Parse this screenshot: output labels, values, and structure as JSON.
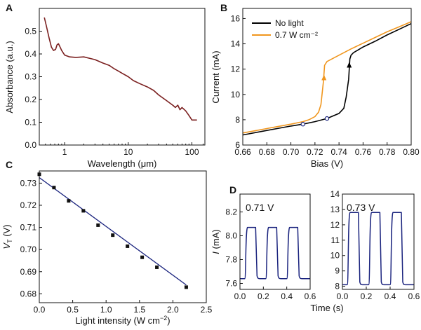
{
  "chart_data": [
    {
      "panel": "A",
      "type": "line",
      "xlabel_main": "Wavelength (",
      "xlabel_unit": "μm",
      "xlabel_close": ")",
      "ylabel": "Absorbance (a.u.)",
      "xscale": "log",
      "xlim": [
        0.4,
        160
      ],
      "ylim": [
        0.0,
        0.6
      ],
      "xticks": [
        1,
        10,
        100
      ],
      "xtick_labels": [
        "1",
        "10",
        "100"
      ],
      "yticks": [
        0.0,
        0.1,
        0.2,
        0.3,
        0.4,
        0.5
      ],
      "ytick_labels": [
        "0.0",
        "0.1",
        "0.2",
        "0.3",
        "0.4",
        "0.5"
      ],
      "color": "#7a1f1f",
      "grid": false,
      "series": [
        {
          "x": [
            0.48,
            0.52,
            0.57,
            0.62,
            0.67,
            0.72,
            0.76,
            0.8,
            0.85,
            0.9,
            1.0,
            1.2,
            1.5,
            2.0,
            3.0,
            4.0,
            5.0,
            6.0,
            7.0,
            8.0,
            10,
            12,
            15,
            20,
            25,
            30,
            40,
            50,
            55,
            60,
            65,
            70,
            80,
            90,
            100,
            110,
            120
          ],
          "y": [
            0.56,
            0.52,
            0.47,
            0.43,
            0.415,
            0.42,
            0.44,
            0.445,
            0.43,
            0.415,
            0.395,
            0.387,
            0.385,
            0.387,
            0.375,
            0.36,
            0.35,
            0.335,
            0.325,
            0.315,
            0.3,
            0.283,
            0.27,
            0.255,
            0.24,
            0.22,
            0.195,
            0.175,
            0.165,
            0.175,
            0.155,
            0.165,
            0.15,
            0.13,
            0.11,
            0.11,
            0.11
          ]
        }
      ]
    },
    {
      "panel": "B",
      "type": "line",
      "xlabel": "Bias (V)",
      "ylabel": "Current (mA)",
      "xlim": [
        0.66,
        0.8
      ],
      "ylim": [
        6,
        16.8
      ],
      "xticks": [
        0.66,
        0.68,
        0.7,
        0.72,
        0.74,
        0.76,
        0.78,
        0.8
      ],
      "xtick_labels": [
        "0.66",
        "0.68",
        "0.70",
        "0.72",
        "0.74",
        "0.76",
        "0.78",
        "0.80"
      ],
      "yticks": [
        6,
        8,
        10,
        12,
        14,
        16
      ],
      "ytick_labels": [
        "6",
        "8",
        "10",
        "12",
        "14",
        "16"
      ],
      "legend_position": "top-left",
      "grid": false,
      "series": [
        {
          "name": "No light",
          "color": "#000000",
          "x": [
            0.66,
            0.68,
            0.7,
            0.71,
            0.72,
            0.73,
            0.74,
            0.744,
            0.746,
            0.748,
            0.749,
            0.75,
            0.752,
            0.76,
            0.77,
            0.78,
            0.79,
            0.8
          ],
          "y": [
            6.8,
            7.15,
            7.5,
            7.65,
            7.85,
            8.1,
            8.5,
            8.9,
            9.8,
            11.2,
            12.8,
            13.1,
            13.3,
            13.75,
            14.2,
            14.7,
            15.15,
            15.6
          ]
        },
        {
          "name": "0.7 W cm⁻²",
          "color": "#f0961e",
          "x": [
            0.66,
            0.68,
            0.7,
            0.71,
            0.715,
            0.72,
            0.723,
            0.725,
            0.727,
            0.728,
            0.73,
            0.74,
            0.75,
            0.76,
            0.77,
            0.78,
            0.79,
            0.8
          ],
          "y": [
            6.95,
            7.3,
            7.65,
            7.85,
            8.0,
            8.25,
            8.6,
            9.2,
            11.0,
            12.3,
            12.6,
            13.1,
            13.6,
            14.05,
            14.5,
            14.95,
            15.35,
            15.75
          ]
        }
      ],
      "markers": [
        {
          "x": 0.71,
          "y": 7.65
        },
        {
          "x": 0.73,
          "y": 8.1
        }
      ]
    },
    {
      "panel": "C",
      "type": "scatter",
      "xlabel_main": "Light intensity (W cm",
      "xlabel_sup": "−2",
      "xlabel_close": ")",
      "ylabel_main": "V",
      "ylabel_sub": "T",
      "ylabel_unit": " (V)",
      "xlim": [
        0,
        2.5
      ],
      "ylim": [
        0.676,
        0.7355
      ],
      "xticks": [
        0,
        0.5,
        1,
        1.5,
        2,
        2.5
      ],
      "xtick_labels": [
        "0.0",
        "0.5",
        "1.0",
        "1.5",
        "2.0",
        "2.5"
      ],
      "yticks": [
        0.68,
        0.69,
        0.7,
        0.71,
        0.72,
        0.73
      ],
      "ytick_labels": [
        "0.68",
        "0.69",
        "0.70",
        "0.71",
        "0.72",
        "0.73"
      ],
      "grid": false,
      "points": {
        "x": [
          0.0,
          0.22,
          0.44,
          0.66,
          0.88,
          1.1,
          1.32,
          1.54,
          1.76,
          2.2
        ],
        "y": [
          0.734,
          0.728,
          0.722,
          0.7175,
          0.711,
          0.7065,
          0.7015,
          0.6965,
          0.692,
          0.683
        ]
      },
      "fit": {
        "x": [
          0,
          2.2
        ],
        "y": [
          0.7325,
          0.684
        ],
        "color": "#1a237e"
      }
    },
    {
      "panel": "D",
      "type": "line",
      "xlabel": "Time (s)",
      "ylabel_main": "I",
      "ylabel_unit": " (mA)",
      "color": "#1a237e",
      "subplots": [
        {
          "annotation": "0.71 V",
          "xlim": [
            0,
            0.6
          ],
          "ylim": [
            7.55,
            8.35
          ],
          "xticks": [
            0,
            0.2,
            0.4,
            0.6
          ],
          "xtick_labels": [
            "0.0",
            "0.2",
            "0.4",
            "0.6"
          ],
          "yticks": [
            7.6,
            7.8,
            8.0,
            8.2
          ],
          "ytick_labels": [
            "7.6",
            "7.8",
            "8.0",
            "8.2"
          ],
          "low": 7.64,
          "high": 8.07,
          "periods": [
            [
              0.04,
              0.14
            ],
            [
              0.22,
              0.32
            ],
            [
              0.4,
              0.5
            ]
          ],
          "tail": 0.6
        },
        {
          "annotation": "0.73 V",
          "xlim": [
            0,
            0.6
          ],
          "ylim": [
            7.8,
            14
          ],
          "xticks": [
            0,
            0.2,
            0.4,
            0.6
          ],
          "xtick_labels": [
            "0.0",
            "0.2",
            "0.4",
            "0.6"
          ],
          "yticks": [
            8,
            9,
            10,
            11,
            12,
            13,
            14
          ],
          "ytick_labels": [
            "8",
            "9",
            "10",
            "11",
            "12",
            "13",
            "14"
          ],
          "low": 8.1,
          "high": 12.8,
          "periods": [
            [
              0.04,
              0.14
            ],
            [
              0.22,
              0.32
            ],
            [
              0.4,
              0.5
            ]
          ],
          "tail": 0.6
        }
      ]
    }
  ]
}
